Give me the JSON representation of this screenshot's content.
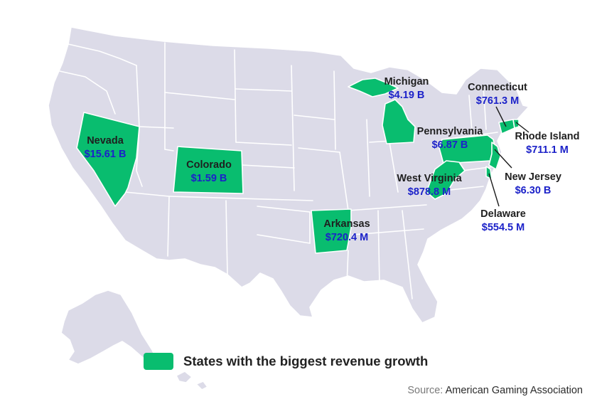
{
  "colors": {
    "land": "#dcdbe8",
    "highlight": "#09bd6f",
    "state_name": "#1f1f1f",
    "value": "#1c22c9"
  },
  "states": {
    "nevada": {
      "name": "Nevada",
      "value": "$15.61 B"
    },
    "colorado": {
      "name": "Colorado",
      "value": "$1.59 B"
    },
    "michigan": {
      "name": "Michigan",
      "value": "$4.19 B"
    },
    "arkansas": {
      "name": "Arkansas",
      "value": "$720.4 M"
    },
    "pennsylvania": {
      "name": "Pennsylvania",
      "value": "$6.87 B"
    },
    "west_virginia": {
      "name": "West Virginia",
      "value": "$878.8 M"
    },
    "connecticut": {
      "name": "Connecticut",
      "value": "$761.3 M"
    },
    "rhode_island": {
      "name": "Rhode Island",
      "value": "$711.1 M"
    },
    "new_jersey": {
      "name": "New Jersey",
      "value": "$6.30 B"
    },
    "delaware": {
      "name": "Delaware",
      "value": "$554.5 M"
    }
  },
  "legend": {
    "label": "States with the biggest revenue growth"
  },
  "source": {
    "label": "Source:",
    "value": "American Gaming Association"
  }
}
